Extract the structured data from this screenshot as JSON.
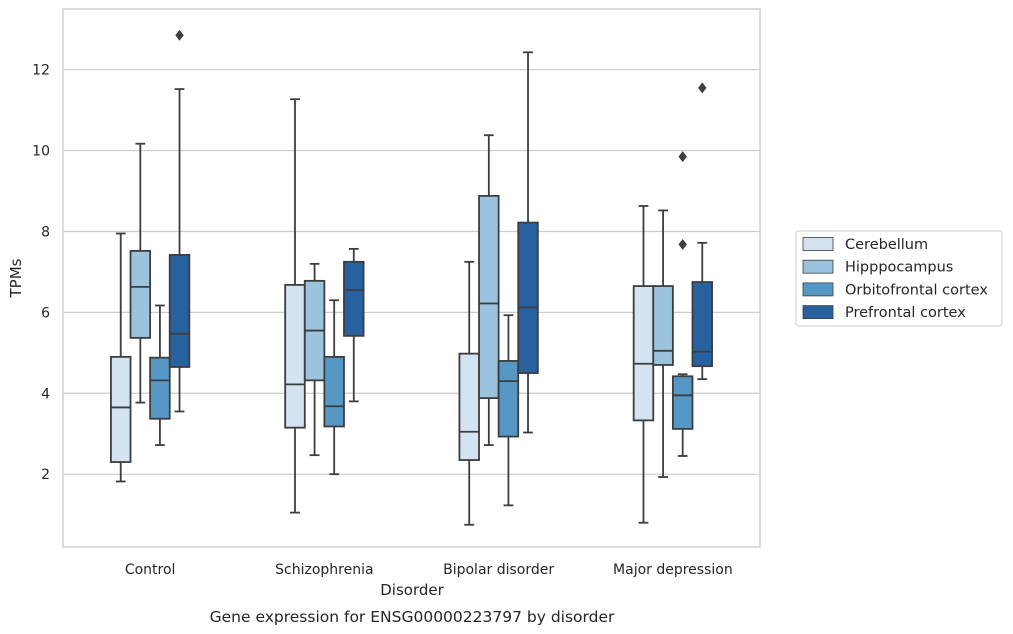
{
  "chart_data": {
    "type": "box",
    "caption": "Gene expression for ENSG00000223797 by disorder",
    "xlabel": "Disorder",
    "ylabel": "TPMs",
    "categories": [
      "Control",
      "Schizophrenia",
      "Bipolar disorder",
      "Major depression"
    ],
    "ylim": [
      0.2,
      13.5
    ],
    "yticks": [
      2,
      4,
      6,
      8,
      10,
      12
    ],
    "grid": true,
    "legend_position": "right",
    "series": [
      {
        "name": "Cerebellum",
        "color": "#d4e3f2",
        "boxes": [
          {
            "min": 1.82,
            "q1": 2.3,
            "median": 3.65,
            "q3": 4.9,
            "max": 7.95,
            "outliers": []
          },
          {
            "min": 1.05,
            "q1": 3.15,
            "median": 4.22,
            "q3": 6.68,
            "max": 11.27,
            "outliers": []
          },
          {
            "min": 0.75,
            "q1": 2.35,
            "median": 3.05,
            "q3": 4.98,
            "max": 7.25,
            "outliers": []
          },
          {
            "min": 0.8,
            "q1": 3.33,
            "median": 4.73,
            "q3": 6.65,
            "max": 8.63,
            "outliers": []
          }
        ]
      },
      {
        "name": "Hipppocampus",
        "color": "#9cc3dd",
        "boxes": [
          {
            "min": 3.77,
            "q1": 5.37,
            "median": 6.63,
            "q3": 7.52,
            "max": 10.17,
            "outliers": []
          },
          {
            "min": 2.47,
            "q1": 4.32,
            "median": 5.55,
            "q3": 6.78,
            "max": 7.2,
            "outliers": []
          },
          {
            "min": 2.72,
            "q1": 3.88,
            "median": 6.22,
            "q3": 8.88,
            "max": 10.38,
            "outliers": []
          },
          {
            "min": 1.93,
            "q1": 4.7,
            "median": 5.05,
            "q3": 6.65,
            "max": 8.52,
            "outliers": []
          }
        ]
      },
      {
        "name": "Orbitofrontal cortex",
        "color": "#5598c6",
        "boxes": [
          {
            "min": 2.72,
            "q1": 3.37,
            "median": 4.32,
            "q3": 4.88,
            "max": 6.17,
            "outliers": []
          },
          {
            "min": 2.0,
            "q1": 3.18,
            "median": 3.68,
            "q3": 4.9,
            "max": 6.3,
            "outliers": []
          },
          {
            "min": 1.23,
            "q1": 2.93,
            "median": 4.3,
            "q3": 4.8,
            "max": 5.93,
            "outliers": []
          },
          {
            "min": 2.45,
            "q1": 3.12,
            "median": 3.95,
            "q3": 4.42,
            "max": 4.47,
            "outliers": [
              7.68,
              9.85
            ]
          }
        ]
      },
      {
        "name": "Prefrontal cortex",
        "color": "#2861a0",
        "boxes": [
          {
            "min": 3.55,
            "q1": 4.65,
            "median": 5.47,
            "q3": 7.42,
            "max": 11.52,
            "outliers": [
              12.85
            ]
          },
          {
            "min": 3.8,
            "q1": 5.42,
            "median": 6.55,
            "q3": 7.25,
            "max": 7.57,
            "outliers": []
          },
          {
            "min": 3.03,
            "q1": 4.5,
            "median": 6.12,
            "q3": 8.22,
            "max": 12.43,
            "outliers": []
          },
          {
            "min": 4.35,
            "q1": 4.67,
            "median": 5.03,
            "q3": 6.75,
            "max": 7.72,
            "outliers": [
              11.55
            ]
          }
        ]
      }
    ]
  }
}
